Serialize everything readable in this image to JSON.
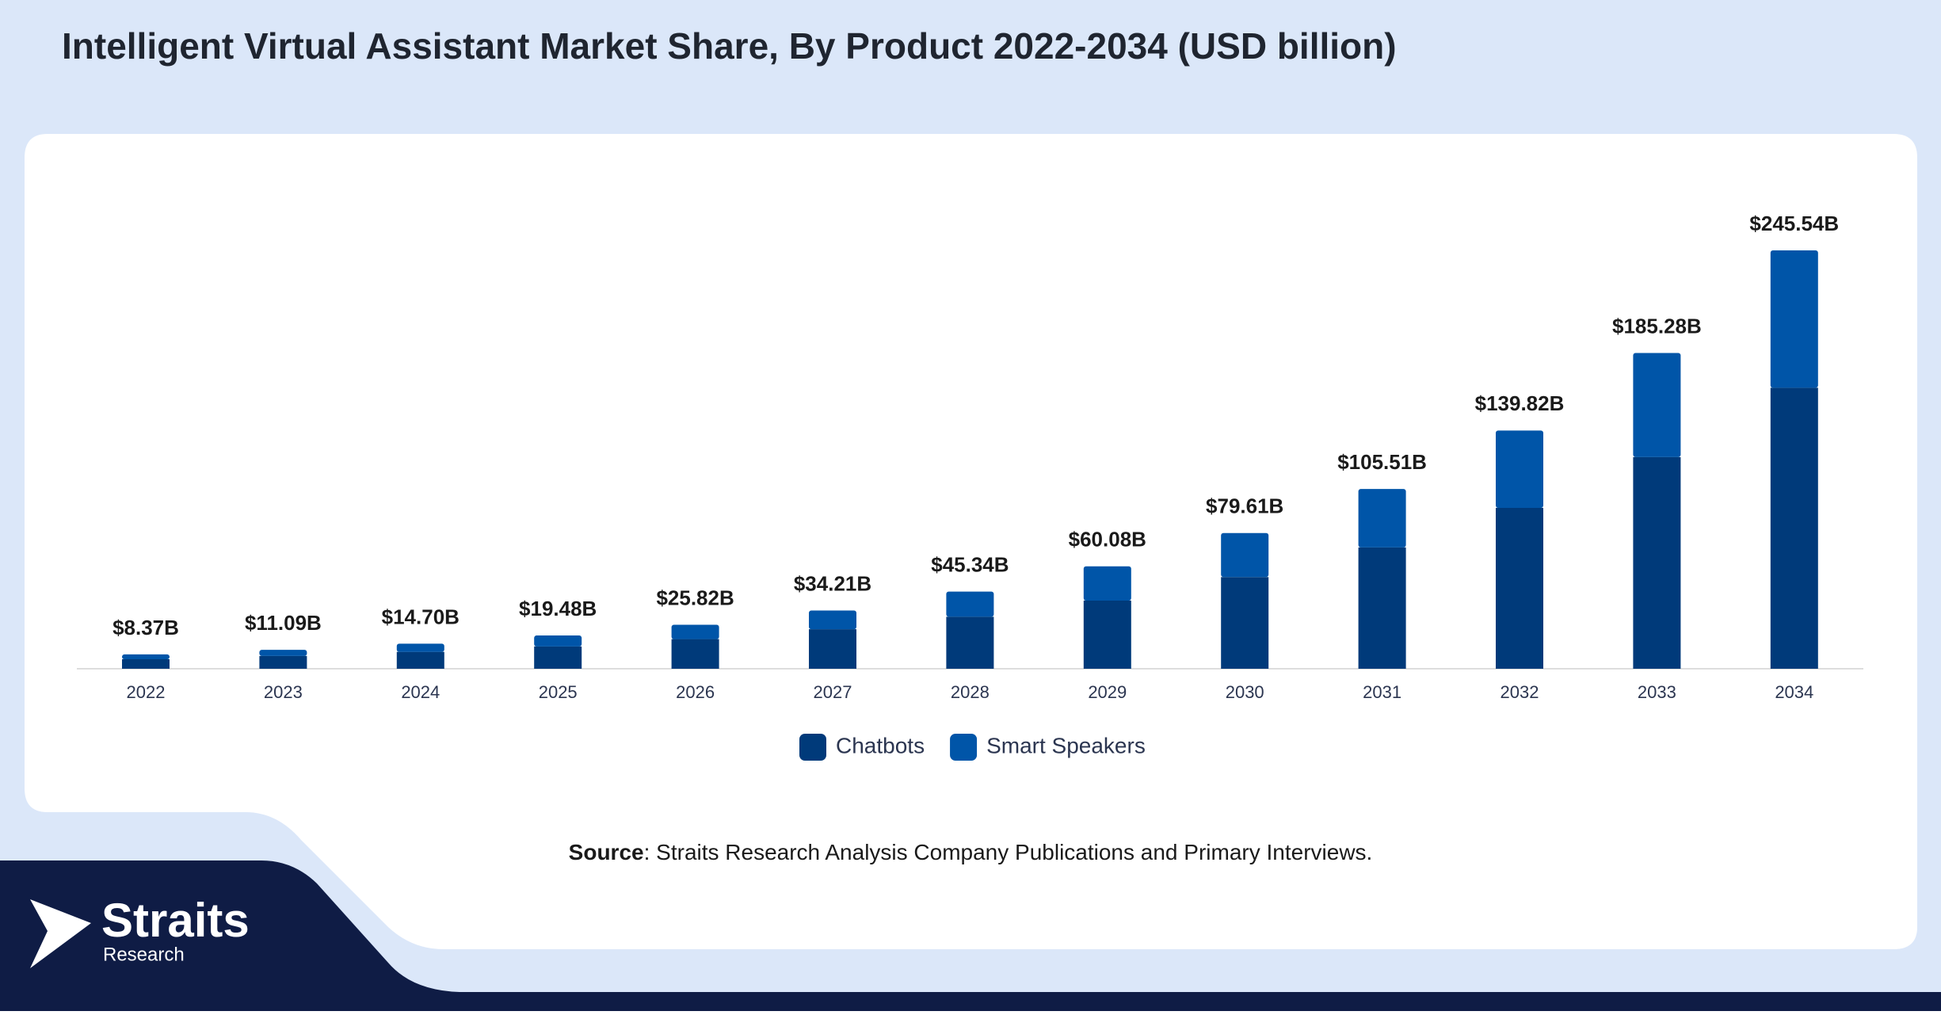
{
  "title": "Intelligent Virtual Assistant Market Share, By Product 2022-2034 (USD billion)",
  "chart_data": {
    "type": "stacked_bar",
    "categories": [
      "2022",
      "2023",
      "2024",
      "2025",
      "2026",
      "2027",
      "2028",
      "2029",
      "2030",
      "2031",
      "2032",
      "2033",
      "2034"
    ],
    "series": [
      {
        "name": "Chatbots",
        "color": "#003a7a",
        "values": [
          5.6,
          7.5,
          9.9,
          13.1,
          17.4,
          23.2,
          30.5,
          40.0,
          53.8,
          71.2,
          94.4,
          124.2,
          164.9
        ]
      },
      {
        "name": "Smart Speakers",
        "color": "#0055a8",
        "values": [
          2.8,
          3.6,
          4.8,
          6.4,
          8.4,
          11.0,
          14.8,
          20.1,
          25.8,
          34.3,
          45.4,
          61.1,
          80.6
        ]
      }
    ],
    "totals": {
      "values": [
        8.37,
        11.09,
        14.7,
        19.48,
        25.82,
        34.21,
        45.34,
        60.08,
        79.61,
        105.51,
        139.82,
        185.28,
        245.54
      ],
      "value_labels": [
        "$8.37B",
        "$11.09B",
        "$14.70B",
        "$19.48B",
        "$25.82B",
        "$34.21B",
        "$45.34B",
        "$60.08B",
        "$79.61B",
        "$105.51B",
        "$139.82B",
        "$185.28B",
        "$245.54B"
      ]
    },
    "legend": "bottom"
  },
  "source_label": "Source",
  "source_text": ": Straits Research Analysis Company Publications and Primary Interviews.",
  "logo": {
    "name": "Straits",
    "sub": "Research"
  }
}
